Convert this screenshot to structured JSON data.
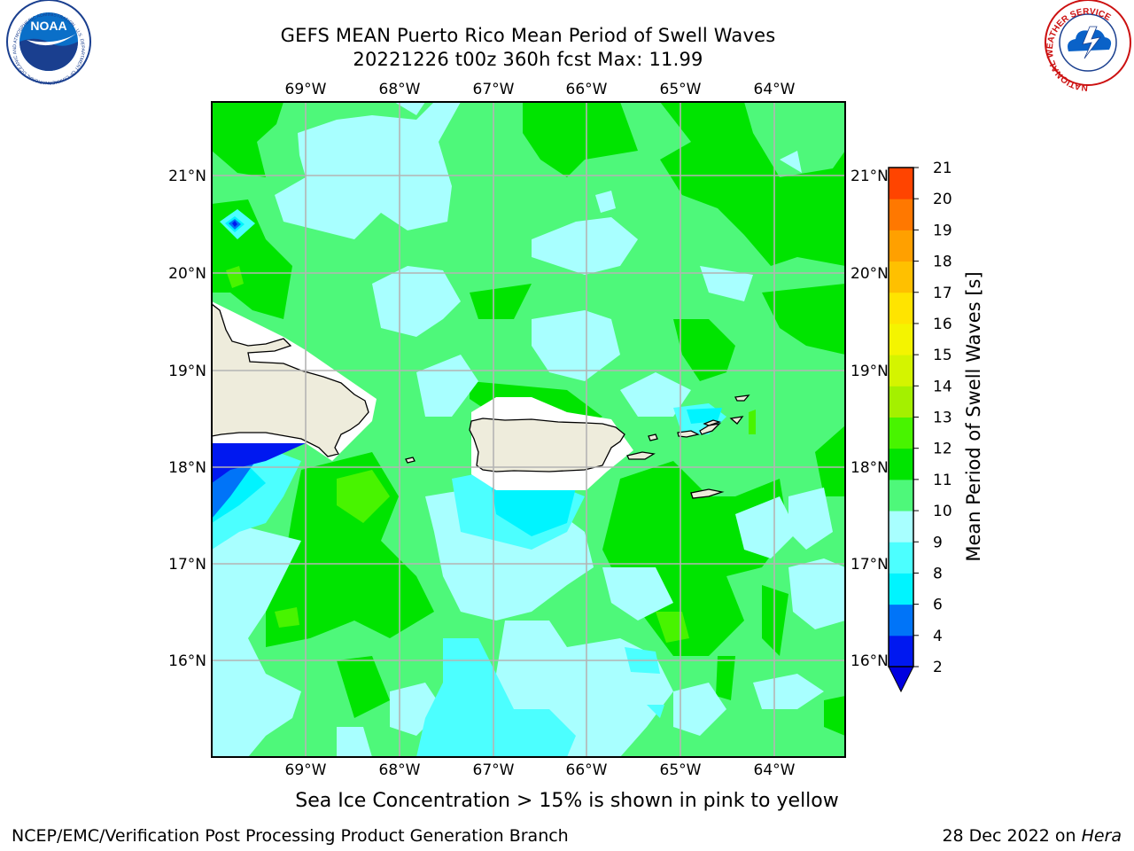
{
  "titles": {
    "line1": "GEFS MEAN Puerto Rico Mean Period of Swell Waves",
    "line2": "20221226 t00z 360h fcst   Max: 11.99"
  },
  "map": {
    "lon_labels": [
      "69°W",
      "68°W",
      "67°W",
      "66°W",
      "65°W",
      "64°W"
    ],
    "lat_labels": [
      "21°N",
      "20°N",
      "19°N",
      "18°N",
      "17°N",
      "16°N"
    ],
    "lon_range": [
      -70.0,
      -63.25
    ],
    "lat_range": [
      15.0,
      21.75
    ]
  },
  "colorbar": {
    "label": "Mean Period of Swell Waves [s]",
    "levels": [
      "2",
      "4",
      "6",
      "8",
      "9",
      "10",
      "11",
      "12",
      "13",
      "14",
      "15",
      "16",
      "17",
      "18",
      "19",
      "20",
      "21"
    ],
    "colors": [
      "#0018f0",
      "#0074f8",
      "#00f4ff",
      "#4cffff",
      "#a8ffff",
      "#4ef87a",
      "#00e400",
      "#48f400",
      "#a4f000",
      "#d4f400",
      "#f4f400",
      "#ffe400",
      "#ffc000",
      "#ffa000",
      "#ff7800",
      "#ff4400",
      "#ff0000"
    ],
    "under_color": "#0000e0"
  },
  "notes": {
    "ice": "Sea Ice Concentration > 15% is shown in pink to yellow"
  },
  "footer": {
    "left": "NCEP/EMC/Verification Post Processing Product Generation Branch",
    "right_date": "28 Dec 2022 on ",
    "right_host": "Hera"
  },
  "logos": {
    "noaa_text": "NOAA",
    "noaa_ring": "NATIONAL OCEANIC AND ATMOSPHERIC ADMINISTRATION · U.S. DEPARTMENT OF COMMERCE ·",
    "nws_ring": "NATIONAL WEATHER SERVICE"
  }
}
